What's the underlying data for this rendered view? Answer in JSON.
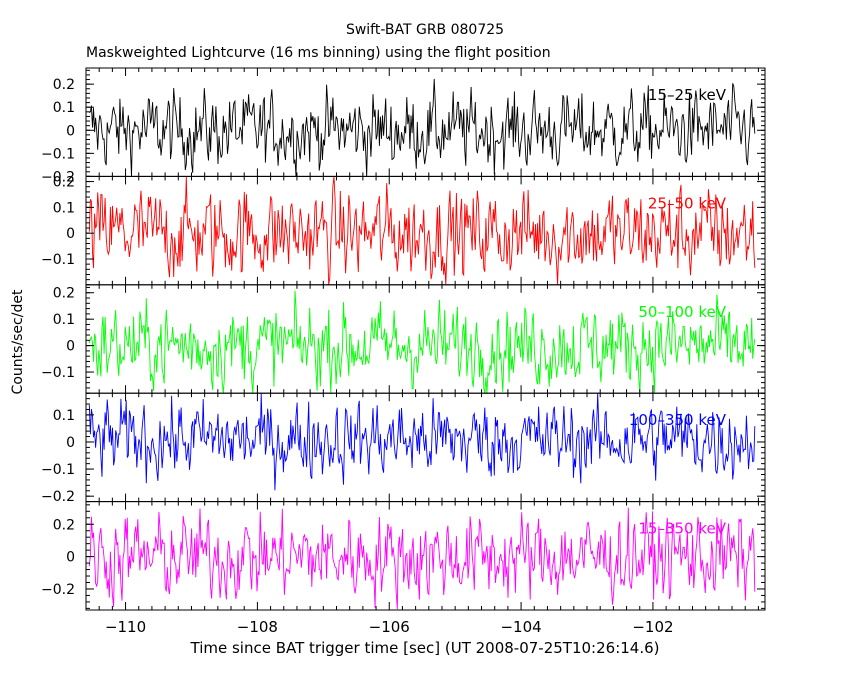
{
  "chart_data": {
    "type": "line",
    "title": "Swift-BAT GRB 080725",
    "subtitle": "Maskweighted Lightcurve (16 ms binning) using the flight position",
    "xlabel": "Time since BAT trigger time [sec] (UT 2008-07-25T10:26:14.6)",
    "ylabel": "Counts/sec/det",
    "xlim": [
      -110.6,
      -100.3
    ],
    "xticks": [
      -110,
      -108,
      -106,
      -104,
      -102
    ],
    "xtick_labels": [
      "−110",
      "−108",
      "−106",
      "−104",
      "−102"
    ],
    "x_start": -110.55,
    "x_end": -100.45,
    "bin_width": 0.016,
    "panels": [
      {
        "name": "15-25 keV",
        "label": "15–25 keV",
        "color": "#000000",
        "ylim": [
          -0.2,
          0.27
        ],
        "yticks": [
          -0.2,
          -0.1,
          0,
          0.1,
          0.2
        ],
        "ytick_labels": [
          "−0.2",
          "−0.1",
          "0",
          "0.1",
          "0.2"
        ],
        "mean": 0.0,
        "amplitude": 0.075,
        "ymin": -0.2,
        "ymax": 0.27
      },
      {
        "name": "25-50 keV",
        "label": "25–50 keV",
        "color": "#ff0000",
        "ylim": [
          -0.2,
          0.22
        ],
        "yticks": [
          -0.1,
          0,
          0.1,
          0.2
        ],
        "ytick_labels": [
          "−0.1",
          "0",
          "0.1",
          "0.2"
        ],
        "mean": 0.0,
        "amplitude": 0.08,
        "ymin": -0.2,
        "ymax": 0.22
      },
      {
        "name": "50-100 keV",
        "label": "50–100 keV",
        "color": "#00ff00",
        "ylim": [
          -0.18,
          0.23
        ],
        "yticks": [
          -0.1,
          0,
          0.1,
          0.2
        ],
        "ytick_labels": [
          "−0.1",
          "0",
          "0.1",
          "0.2"
        ],
        "mean": 0.0,
        "amplitude": 0.07,
        "ymin": -0.18,
        "ymax": 0.23
      },
      {
        "name": "100-350 keV",
        "label": "100–350 keV",
        "color": "#0000ff",
        "ylim": [
          -0.22,
          0.18
        ],
        "yticks": [
          -0.2,
          -0.1,
          0,
          0.1
        ],
        "ytick_labels": [
          "−0.2",
          "−0.1",
          "0",
          "0.1"
        ],
        "mean": 0.01,
        "amplitude": 0.065,
        "ymin": -0.22,
        "ymax": 0.18
      },
      {
        "name": "15-350 keV",
        "label": "15–350 keV",
        "color": "#ff00ff",
        "ylim": [
          -0.33,
          0.34
        ],
        "yticks": [
          -0.2,
          0,
          0.2
        ],
        "ytick_labels": [
          "−0.2",
          "0",
          "0.2"
        ],
        "mean": 0.0,
        "amplitude": 0.12,
        "ymin": -0.33,
        "ymax": 0.34
      }
    ]
  }
}
